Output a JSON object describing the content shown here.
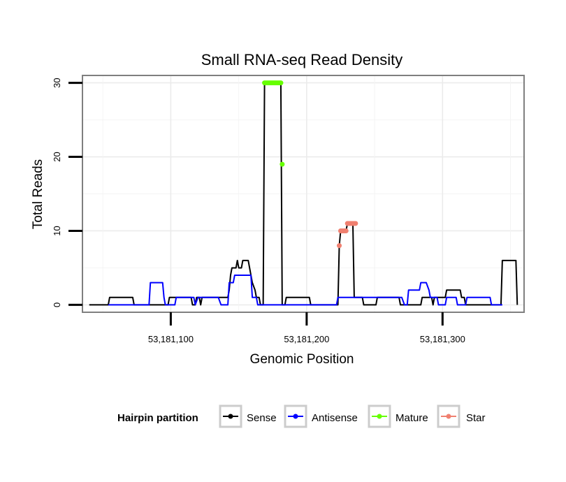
{
  "chart_data": {
    "type": "line",
    "title": "Small RNA-seq Read Density",
    "xlabel": "Genomic Position",
    "ylabel": "Total Reads",
    "xlim": [
      53181035,
      53181360
    ],
    "ylim": [
      -1,
      31
    ],
    "xticks": [
      53181100,
      53181200,
      53181300
    ],
    "xtick_labels": [
      "53,181,100",
      "53,181,200",
      "53,181,300"
    ],
    "yticks": [
      0,
      10,
      20,
      30
    ],
    "ytick_labels": [
      "0",
      "10",
      "20",
      "30"
    ],
    "grid": true,
    "legend": {
      "title": "Hairpin partition",
      "position": "bottom",
      "entries": [
        "Sense",
        "Antisense",
        "Mature",
        "Star"
      ]
    },
    "series": [
      {
        "name": "Sense",
        "color": "#000000",
        "kind": "line",
        "points": [
          [
            53181040,
            0
          ],
          [
            53181054,
            0
          ],
          [
            53181055,
            1
          ],
          [
            53181072,
            1
          ],
          [
            53181073,
            0
          ],
          [
            53181098,
            0
          ],
          [
            53181099,
            1
          ],
          [
            53181115,
            1
          ],
          [
            53181116,
            0
          ],
          [
            53181118,
            0
          ],
          [
            53181119,
            1
          ],
          [
            53181121,
            1
          ],
          [
            53181122,
            0
          ],
          [
            53181123,
            1
          ],
          [
            53181142,
            1
          ],
          [
            53181143,
            2
          ],
          [
            53181144,
            4
          ],
          [
            53181145,
            5
          ],
          [
            53181148,
            5
          ],
          [
            53181149,
            6
          ],
          [
            53181150,
            5
          ],
          [
            53181152,
            5
          ],
          [
            53181153,
            6
          ],
          [
            53181157,
            6
          ],
          [
            53181158,
            5
          ],
          [
            53181159,
            4
          ],
          [
            53181160,
            3
          ],
          [
            53181162,
            2
          ],
          [
            53181163,
            1
          ],
          [
            53181165,
            1
          ],
          [
            53181166,
            0
          ],
          [
            53181168,
            0
          ],
          [
            53181169,
            30
          ],
          [
            53181181,
            30
          ],
          [
            53181182,
            0
          ],
          [
            53181184,
            0
          ],
          [
            53181185,
            1
          ],
          [
            53181202,
            1
          ],
          [
            53181203,
            0
          ],
          [
            53181223,
            0
          ],
          [
            53181224,
            8
          ],
          [
            53181225,
            10
          ],
          [
            53181229,
            10
          ],
          [
            53181230,
            11
          ],
          [
            53181234,
            11
          ],
          [
            53181235,
            1
          ],
          [
            53181241,
            1
          ],
          [
            53181242,
            0
          ],
          [
            53181251,
            0
          ],
          [
            53181252,
            1
          ],
          [
            53181268,
            1
          ],
          [
            53181269,
            0
          ],
          [
            53181284,
            0
          ],
          [
            53181285,
            1
          ],
          [
            53181292,
            1
          ],
          [
            53181293,
            0
          ],
          [
            53181294,
            1
          ],
          [
            53181302,
            1
          ],
          [
            53181303,
            2
          ],
          [
            53181313,
            2
          ],
          [
            53181314,
            1
          ],
          [
            53181316,
            1
          ],
          [
            53181317,
            0
          ],
          [
            53181343,
            0
          ],
          [
            53181344,
            6
          ],
          [
            53181354,
            6
          ],
          [
            53181355,
            0
          ]
        ]
      },
      {
        "name": "Antisense",
        "color": "#0000ff",
        "kind": "line",
        "points": [
          [
            53181054,
            0
          ],
          [
            53181084,
            0
          ],
          [
            53181085,
            3
          ],
          [
            53181094,
            3
          ],
          [
            53181095,
            1
          ],
          [
            53181096,
            0
          ],
          [
            53181103,
            0
          ],
          [
            53181104,
            1
          ],
          [
            53181117,
            1
          ],
          [
            53181118,
            0
          ],
          [
            53181120,
            1
          ],
          [
            53181135,
            1
          ],
          [
            53181137,
            0
          ],
          [
            53181142,
            0
          ],
          [
            53181143,
            3
          ],
          [
            53181146,
            3
          ],
          [
            53181147,
            4
          ],
          [
            53181159,
            4
          ],
          [
            53181160,
            1
          ],
          [
            53181163,
            1
          ],
          [
            53181164,
            0
          ],
          [
            53181222,
            0
          ],
          [
            53181223,
            1
          ],
          [
            53181270,
            1
          ],
          [
            53181272,
            0
          ],
          [
            53181274,
            0
          ],
          [
            53181275,
            2
          ],
          [
            53181283,
            2
          ],
          [
            53181284,
            3
          ],
          [
            53181288,
            3
          ],
          [
            53181290,
            2
          ],
          [
            53181291,
            1
          ],
          [
            53181296,
            1
          ],
          [
            53181297,
            0
          ],
          [
            53181302,
            0
          ],
          [
            53181303,
            1
          ],
          [
            53181310,
            1
          ],
          [
            53181311,
            0
          ],
          [
            53181317,
            0
          ],
          [
            53181318,
            1
          ],
          [
            53181335,
            1
          ],
          [
            53181336,
            0
          ],
          [
            53181344,
            0
          ]
        ]
      },
      {
        "name": "Mature",
        "color": "#66ff00",
        "kind": "points",
        "points": [
          [
            53181169,
            30
          ],
          [
            53181170,
            30
          ],
          [
            53181171,
            30
          ],
          [
            53181172,
            30
          ],
          [
            53181173,
            30
          ],
          [
            53181174,
            30
          ],
          [
            53181175,
            30
          ],
          [
            53181176,
            30
          ],
          [
            53181177,
            30
          ],
          [
            53181178,
            30
          ],
          [
            53181179,
            30
          ],
          [
            53181180,
            30
          ],
          [
            53181181,
            30
          ],
          [
            53181182,
            19
          ]
        ]
      },
      {
        "name": "Star",
        "color": "#f08070",
        "kind": "points",
        "points": [
          [
            53181224,
            8
          ],
          [
            53181225,
            10
          ],
          [
            53181226,
            10
          ],
          [
            53181227,
            10
          ],
          [
            53181228,
            10
          ],
          [
            53181229,
            10
          ],
          [
            53181230,
            11
          ],
          [
            53181231,
            11
          ],
          [
            53181232,
            11
          ],
          [
            53181233,
            11
          ],
          [
            53181234,
            11
          ],
          [
            53181235,
            11
          ],
          [
            53181236,
            11
          ]
        ]
      }
    ]
  }
}
